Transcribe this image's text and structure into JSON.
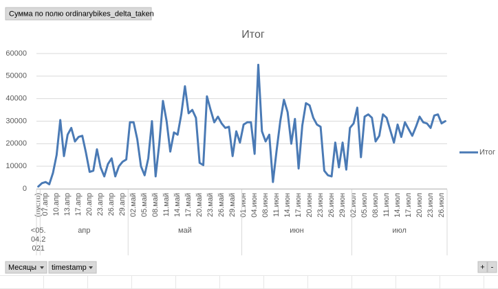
{
  "field_button": "Сумма по полю ordinarybikes_delta_taken",
  "axis_buttons": [
    "Месяцы",
    "timestamp"
  ],
  "zoom_buttons": [
    "+",
    "-"
  ],
  "chart_data": {
    "type": "line",
    "title": "Итог",
    "categories": [
      "(пусто)",
      null,
      "07.апр",
      null,
      null,
      "10.апр",
      null,
      null,
      "13.апр",
      null,
      null,
      "17.апр",
      null,
      null,
      "20.апр",
      null,
      null,
      "23.апр",
      null,
      null,
      "26.апр",
      null,
      null,
      "29.апр",
      null,
      null,
      "02.май",
      null,
      null,
      "05.май",
      null,
      null,
      "08.май",
      null,
      null,
      "11.май",
      null,
      null,
      "14.май",
      null,
      null,
      "17.май",
      null,
      null,
      "20.май",
      null,
      null,
      "23.май",
      null,
      null,
      "26.май",
      null,
      null,
      "29.май",
      null,
      null,
      "01.июн",
      null,
      null,
      "04.июн",
      null,
      null,
      "08.июн",
      null,
      null,
      "11.июн",
      null,
      null,
      "14.июн",
      null,
      null,
      "17.июн",
      null,
      null,
      "20.июн",
      null,
      null,
      "23.июн",
      null,
      null,
      "26.июн",
      null,
      null,
      "29.июн",
      null,
      null,
      "02.июл",
      null,
      null,
      "05.июл",
      null,
      null,
      "08.июл",
      null,
      null,
      "11.июл",
      null,
      null,
      "14.июл",
      null,
      null,
      "17.июл",
      null,
      null,
      "20.июл",
      null,
      null,
      "23.июл",
      null,
      null,
      "26.июл",
      null
    ],
    "x_groups": [
      {
        "label": "<05.04.2021",
        "count": 1
      },
      {
        "label": "апр",
        "count": 24
      },
      {
        "label": "май",
        "count": 31
      },
      {
        "label": "июн",
        "count": 30
      },
      {
        "label": "июл",
        "count": 26
      }
    ],
    "series": [
      {
        "name": "Итог",
        "color": "#4a7ab5",
        "values": [
          1000,
          2500,
          3000,
          2000,
          7000,
          15000,
          30500,
          14500,
          24000,
          27000,
          21000,
          23000,
          23500,
          16000,
          7500,
          8000,
          17500,
          9500,
          5500,
          11000,
          13500,
          5500,
          10000,
          12000,
          13000,
          29500,
          29500,
          22000,
          10000,
          6000,
          13500,
          30000,
          5500,
          20000,
          39000,
          30000,
          16500,
          25000,
          24000,
          33000,
          45500,
          33500,
          35000,
          31500,
          11500,
          10500,
          41000,
          35000,
          29500,
          32000,
          29000,
          27000,
          27500,
          14500,
          25500,
          20500,
          28500,
          29500,
          29500,
          15500,
          55000,
          25500,
          21000,
          24000,
          3000,
          17000,
          30000,
          39500,
          34000,
          20000,
          31000,
          9000,
          28000,
          38000,
          37000,
          31500,
          28500,
          27500,
          8000,
          6000,
          5500,
          20500,
          9500,
          20500,
          8500,
          27000,
          29000,
          36000,
          14000,
          32000,
          33000,
          31500,
          21000,
          23500,
          33000,
          31500,
          26000,
          20500,
          28500,
          23000,
          29500,
          26500,
          23500,
          27500,
          32000,
          29500,
          29000,
          27000,
          32500,
          33000,
          29000,
          30000
        ]
      }
    ],
    "ylim": [
      0,
      60000
    ],
    "yticks": [
      0,
      10000,
      20000,
      30000,
      40000,
      50000,
      60000
    ],
    "grid": true,
    "legend": "right"
  }
}
